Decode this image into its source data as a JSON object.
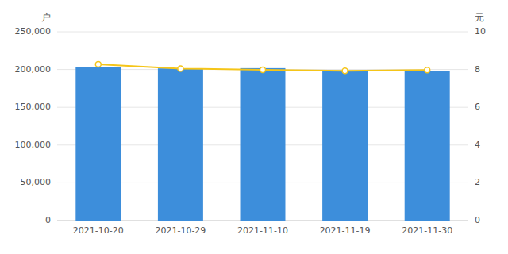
{
  "chart_data": {
    "type": "bar",
    "categories": [
      "2021-10-20",
      "2021-10-29",
      "2021-11-10",
      "2021-11-19",
      "2021-11-30"
    ],
    "series": [
      {
        "type": "bar",
        "color": "#3d8edb",
        "values": [
          203600,
          201500,
          201800,
          198700,
          197800
        ]
      },
      {
        "type": "line",
        "axis": "y2",
        "color": "#f5c518",
        "marker": "circle",
        "values": [
          8.28,
          8.05,
          7.98,
          7.93,
          7.97
        ]
      }
    ],
    "ylabel": "户",
    "y2label": "元",
    "ylim": [
      0,
      250000
    ],
    "yticks": [
      0,
      {
        "value": 50000,
        "label": "50,000"
      },
      {
        "value": 100000,
        "label": "100,000"
      },
      {
        "value": 150000,
        "label": "150,000"
      },
      {
        "value": 200000,
        "label": "200,000"
      },
      {
        "value": 250000,
        "label": "250,000"
      }
    ],
    "y2lim": [
      0,
      10
    ],
    "y2ticks": [
      0,
      2,
      4,
      6,
      8,
      10
    ],
    "grid": true,
    "background_color": "#ffffff"
  }
}
